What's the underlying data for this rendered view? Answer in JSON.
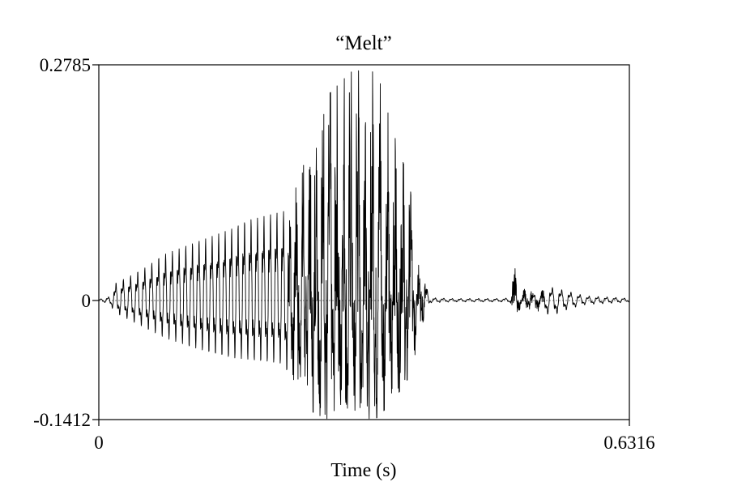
{
  "chart_data": {
    "type": "line",
    "title": "“Melt”",
    "xlabel": "Time (s)",
    "ylabel": "",
    "xlim": [
      0,
      0.6316
    ],
    "ylim": [
      -0.1412,
      0.2785
    ],
    "x_tick_labels": [
      "0",
      "0.6316"
    ],
    "y_tick_labels": [
      "0.2785",
      "0",
      "-0.1412"
    ],
    "grid": false,
    "series": [
      {
        "kind": "waveform",
        "envelope": {
          "t": [
            0,
            0.012,
            0.02,
            0.03,
            0.05,
            0.08,
            0.12,
            0.16,
            0.18,
            0.2,
            0.22,
            0.225,
            0.25,
            0.27,
            0.3,
            0.33,
            0.35,
            0.37,
            0.38,
            0.39,
            0.395,
            0.42,
            0.45,
            0.48,
            0.49,
            0.495,
            0.5,
            0.51,
            0.52,
            0.54,
            0.56,
            0.58,
            0.6,
            0.62,
            0.6316
          ],
          "pos": [
            0.001,
            0.004,
            0.02,
            0.025,
            0.035,
            0.055,
            0.07,
            0.085,
            0.095,
            0.1,
            0.105,
            0.115,
            0.18,
            0.24,
            0.27,
            0.275,
            0.2,
            0.14,
            0.07,
            0.015,
            0.003,
            0.002,
            0.002,
            0.002,
            0.003,
            0.04,
            0.015,
            0.012,
            0.01,
            0.015,
            0.01,
            0.005,
            0.004,
            0.003,
            0.002
          ],
          "neg": [
            -0.001,
            -0.004,
            -0.015,
            -0.02,
            -0.03,
            -0.045,
            -0.058,
            -0.068,
            -0.07,
            -0.072,
            -0.075,
            -0.085,
            -0.13,
            -0.14,
            -0.14,
            -0.14,
            -0.12,
            -0.09,
            -0.05,
            -0.01,
            -0.003,
            -0.002,
            -0.002,
            -0.002,
            -0.003,
            -0.02,
            -0.012,
            -0.01,
            -0.012,
            -0.018,
            -0.01,
            -0.005,
            -0.004,
            -0.003,
            -0.002
          ]
        }
      }
    ]
  }
}
